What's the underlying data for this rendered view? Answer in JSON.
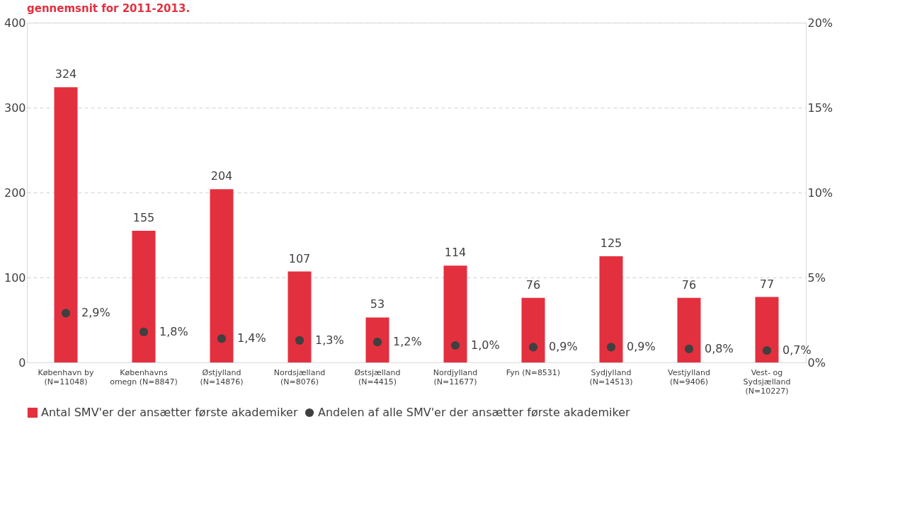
{
  "chart_data": {
    "type": "bar",
    "title": "gennemsnit for 2011-2013.",
    "categories": [
      "København by\n(N=11048)",
      "Københavns\nomegn (N=8847)",
      "Østjylland\n(N=14876)",
      "Nordsjælland\n(N=8076)",
      "Østsjælland\n(N=4415)",
      "Nordjylland\n(N=11677)",
      "Fyn (N=8531)",
      "Sydjylland\n(N=14513)",
      "Vestjylland\n(N=9406)",
      "Vest- og\nSydsjælland\n(N=10227)"
    ],
    "series": [
      {
        "name": "Antal SMV'er der ansætter første akademiker",
        "color": "#e3303f",
        "values": [
          324,
          155,
          204,
          107,
          53,
          114,
          76,
          125,
          76,
          77
        ],
        "value_labels": [
          "324",
          "155",
          "204",
          "107",
          "53",
          "114",
          "76",
          "125",
          "76",
          "77"
        ]
      },
      {
        "name": "Andelen af alle SMV'er der ansætter første akademiker",
        "type": "scatter",
        "axis": "y2",
        "color": "#404040",
        "values": [
          2.9,
          1.8,
          1.4,
          1.3,
          1.2,
          1.0,
          0.9,
          0.9,
          0.8,
          0.7
        ],
        "value_labels": [
          "2,9%",
          "1,8%",
          "1,4%",
          "1,3%",
          "1,2%",
          "1,0%",
          "0,9%",
          "0,9%",
          "0,8%",
          "0,7%"
        ]
      }
    ],
    "ylim": [
      0,
      400
    ],
    "yticks": [
      0,
      100,
      200,
      300,
      400
    ],
    "y2lim": [
      0,
      20
    ],
    "y2ticks": [
      {
        "value": 0,
        "label": "0%"
      },
      {
        "value": 5,
        "label": "5%"
      },
      {
        "value": 10,
        "label": "10%"
      },
      {
        "value": 15,
        "label": "15%"
      },
      {
        "value": 20,
        "label": "20%"
      }
    ],
    "grid": "y",
    "legend": "bottom",
    "marker": "circle"
  }
}
